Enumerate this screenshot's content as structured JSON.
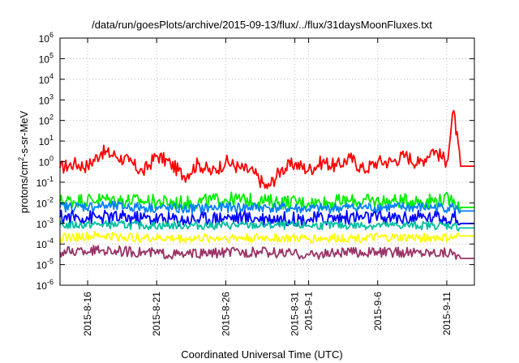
{
  "chart_data": {
    "type": "line",
    "title": "/data/run/goesPlots/archive/2015-09-13/flux/../flux/31daysMoonFluxes.txt",
    "xlabel": "Coordinated Universal Time (UTC)",
    "ylabel": "protons/cm2-s-sr-MeV",
    "y_scale": "log",
    "ylim": [
      1e-06,
      1000000.0
    ],
    "y_ticks": [
      {
        "base": "10",
        "exp": "-6"
      },
      {
        "base": "10",
        "exp": "-5"
      },
      {
        "base": "10",
        "exp": "-4"
      },
      {
        "base": "10",
        "exp": "-3"
      },
      {
        "base": "10",
        "exp": "-2"
      },
      {
        "base": "10",
        "exp": "-1"
      },
      {
        "base": "10",
        "exp": "0"
      },
      {
        "base": "10",
        "exp": "1"
      },
      {
        "base": "10",
        "exp": "2"
      },
      {
        "base": "10",
        "exp": "3"
      },
      {
        "base": "10",
        "exp": "4"
      },
      {
        "base": "10",
        "exp": "5"
      },
      {
        "base": "10",
        "exp": "6"
      }
    ],
    "x_range": [
      "2015-08-14",
      "2015-09-13"
    ],
    "x_ticks": [
      "2015-8-16",
      "2015-8-21",
      "2015-8-26",
      "2015-8-31",
      "2015-9-1",
      "2015-9-6",
      "2015-9-11"
    ],
    "grid": true,
    "series": [
      {
        "color": "#ff0000",
        "x": [
          "2015-08-14",
          "2015-08-15",
          "2015-08-16",
          "2015-08-17",
          "2015-08-18",
          "2015-08-19",
          "2015-08-20",
          "2015-08-21",
          "2015-08-22",
          "2015-08-23",
          "2015-08-24",
          "2015-08-25",
          "2015-08-26",
          "2015-08-27",
          "2015-08-28",
          "2015-08-29",
          "2015-08-30",
          "2015-08-31",
          "2015-09-01",
          "2015-09-02",
          "2015-09-03",
          "2015-09-04",
          "2015-09-05",
          "2015-09-06",
          "2015-09-07",
          "2015-09-08",
          "2015-09-09",
          "2015-09-10",
          "2015-09-11",
          "2015-09-11T12",
          "2015-09-12",
          "2015-09-13"
        ],
        "y": [
          0.5,
          0.8,
          0.6,
          3,
          2,
          1,
          0.3,
          2,
          0.8,
          0.2,
          0.8,
          0.3,
          1,
          0.5,
          0.3,
          0.05,
          0.4,
          0.8,
          0.4,
          1,
          0.6,
          1.5,
          0.4,
          1,
          1,
          2,
          0.8,
          4,
          1,
          300,
          0.6,
          0.6
        ]
      },
      {
        "color": "#00ee00",
        "x": [
          "2015-08-14",
          "2015-08-17",
          "2015-08-20",
          "2015-08-23",
          "2015-08-26",
          "2015-08-29",
          "2015-09-01",
          "2015-09-04",
          "2015-09-07",
          "2015-09-10",
          "2015-09-11T12",
          "2015-09-12",
          "2015-09-13"
        ],
        "y": [
          0.012,
          0.015,
          0.012,
          0.01,
          0.015,
          0.012,
          0.01,
          0.012,
          0.012,
          0.013,
          0.015,
          0.006,
          0.006
        ]
      },
      {
        "color": "#0080ff",
        "x": [
          "2015-08-14",
          "2015-08-17",
          "2015-08-20",
          "2015-08-23",
          "2015-08-26",
          "2015-08-29",
          "2015-09-01",
          "2015-09-04",
          "2015-09-07",
          "2015-09-10",
          "2015-09-11T12",
          "2015-09-12",
          "2015-09-13"
        ],
        "y": [
          0.006,
          0.007,
          0.006,
          0.005,
          0.006,
          0.006,
          0.005,
          0.006,
          0.006,
          0.006,
          0.006,
          0.004,
          0.004
        ]
      },
      {
        "color": "#0000ff",
        "x": [
          "2015-08-14",
          "2015-08-17",
          "2015-08-20",
          "2015-08-23",
          "2015-08-26",
          "2015-08-29",
          "2015-09-01",
          "2015-09-04",
          "2015-09-07",
          "2015-09-10",
          "2015-09-11T12",
          "2015-09-12",
          "2015-09-13"
        ],
        "y": [
          0.002,
          0.002,
          0.0018,
          0.0015,
          0.002,
          0.0018,
          0.0016,
          0.002,
          0.0018,
          0.002,
          0.002,
          0.001,
          0.001
        ]
      },
      {
        "color": "#00c0a0",
        "x": [
          "2015-08-14",
          "2015-08-17",
          "2015-08-20",
          "2015-08-23",
          "2015-08-26",
          "2015-08-29",
          "2015-09-01",
          "2015-09-04",
          "2015-09-07",
          "2015-09-10",
          "2015-09-11T12",
          "2015-09-12",
          "2015-09-13"
        ],
        "y": [
          0.0008,
          0.0009,
          0.0008,
          0.0008,
          0.0008,
          0.0008,
          0.0008,
          0.0008,
          0.0008,
          0.0008,
          0.0008,
          0.0006,
          0.0006
        ]
      },
      {
        "color": "#ffff00",
        "x": [
          "2015-08-14",
          "2015-08-17",
          "2015-08-20",
          "2015-08-23",
          "2015-08-26",
          "2015-08-29",
          "2015-09-01",
          "2015-09-04",
          "2015-09-07",
          "2015-09-10",
          "2015-09-11T12",
          "2015-09-12",
          "2015-09-13"
        ],
        "y": [
          0.0002,
          0.00025,
          0.0002,
          0.00018,
          0.0002,
          0.0002,
          0.00018,
          0.0002,
          0.0002,
          0.0002,
          0.0002,
          0.00025,
          0.00025
        ]
      },
      {
        "color": "#993366",
        "x": [
          "2015-08-14",
          "2015-08-17",
          "2015-08-20",
          "2015-08-23",
          "2015-08-26",
          "2015-08-29",
          "2015-09-01",
          "2015-09-04",
          "2015-09-07",
          "2015-09-10",
          "2015-09-11T12",
          "2015-09-12",
          "2015-09-13"
        ],
        "y": [
          4e-05,
          5e-05,
          4e-05,
          3e-05,
          4e-05,
          4e-05,
          3e-05,
          4e-05,
          4e-05,
          4e-05,
          4e-05,
          2e-05,
          2e-05
        ]
      }
    ]
  }
}
